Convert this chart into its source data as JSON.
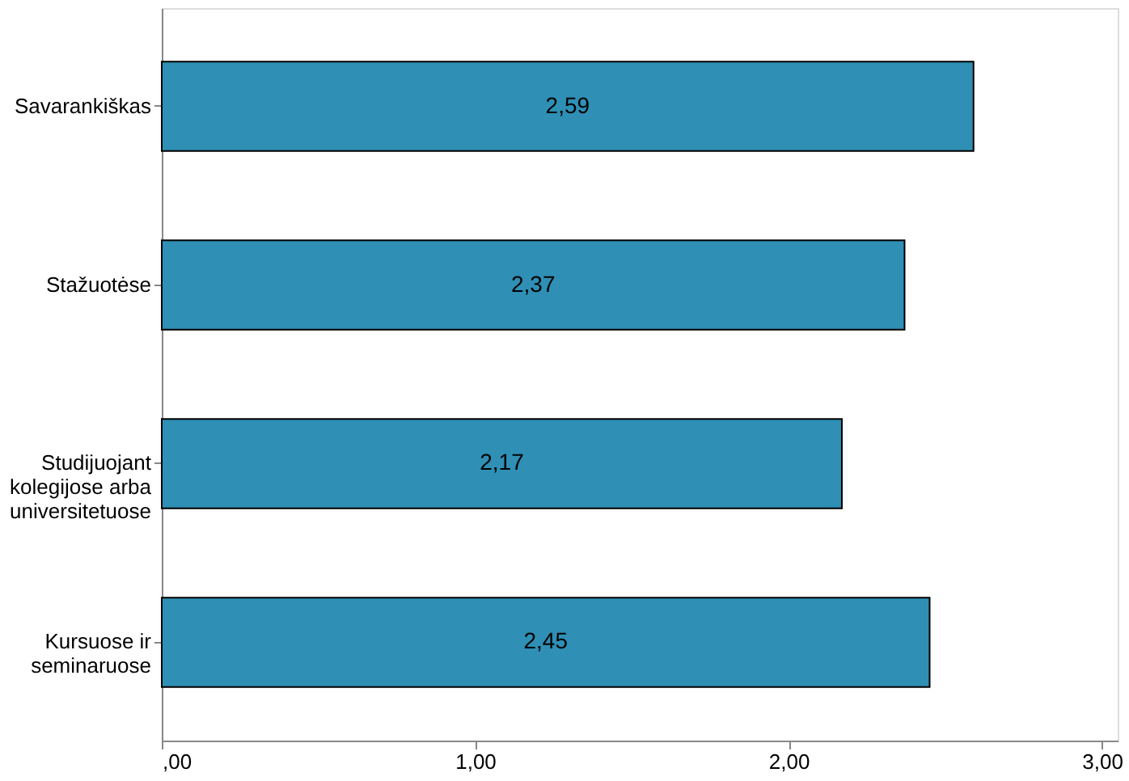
{
  "chart_data": {
    "type": "bar",
    "orientation": "horizontal",
    "categories": [
      "Savarankiškas",
      "Stažuotėse",
      "Studijuojant\nkolegijose arba\nuniversitetuose",
      "Kursuose ir\nseminaruose"
    ],
    "values": [
      2.59,
      2.37,
      2.17,
      2.45
    ],
    "value_labels": [
      "2,59",
      "2,37",
      "2,17",
      "2,45"
    ],
    "color": "#2f8fb5",
    "xlim": [
      0,
      3.05
    ],
    "xticks": [
      {
        "value": 0,
        "label": ",00"
      },
      {
        "value": 1,
        "label": "1,00"
      },
      {
        "value": 2,
        "label": "2,00"
      },
      {
        "value": 3,
        "label": "3,00"
      }
    ],
    "grid": false
  }
}
